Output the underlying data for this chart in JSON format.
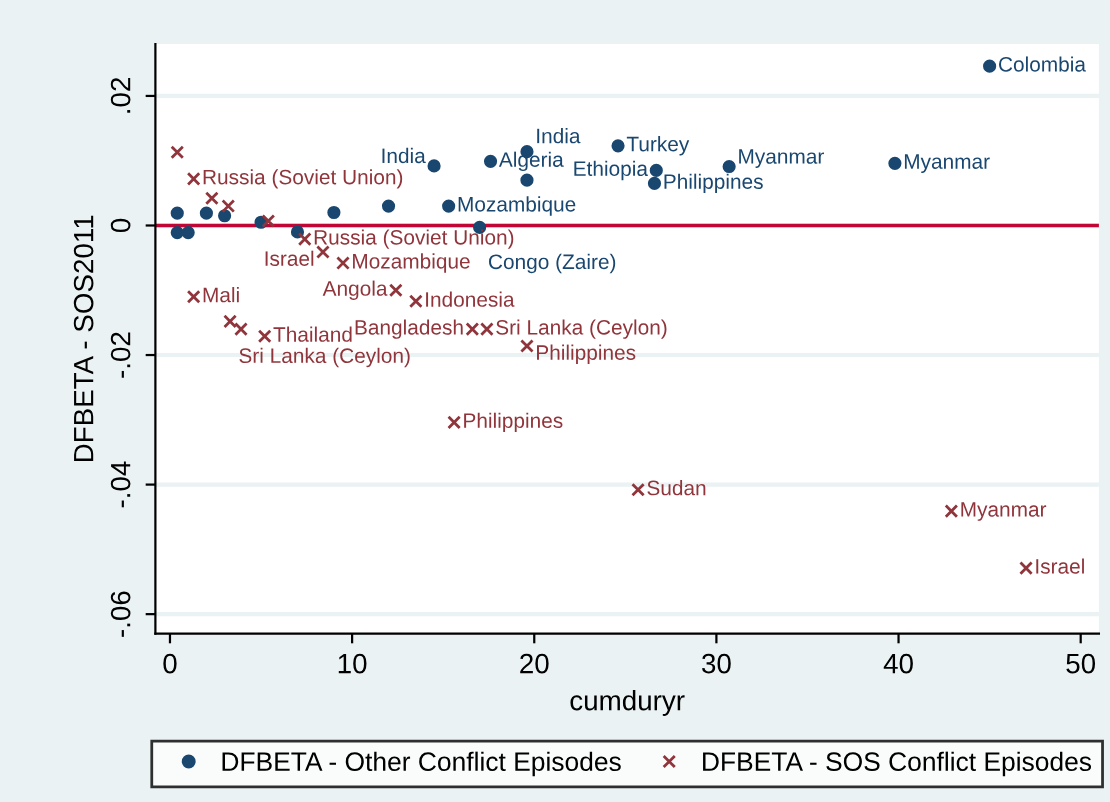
{
  "chart_data": {
    "type": "scatter",
    "xlabel": "cumduryr",
    "ylabel": "DFBETA - SOS2011",
    "xlim": [
      -0.8,
      51
    ],
    "ylim": [
      -0.063,
      0.028
    ],
    "xticks": [
      0,
      10,
      20,
      30,
      40,
      50
    ],
    "yticks": [
      {
        "value": -0.06,
        "label": "-.06"
      },
      {
        "value": -0.04,
        "label": "-.04"
      },
      {
        "value": -0.02,
        "label": "-.02"
      },
      0,
      {
        "value": 0.02,
        "label": ".02"
      }
    ],
    "grid": "y",
    "legend": "bottom",
    "ref_lines": [
      {
        "axis": "y",
        "value": 0,
        "color": "#c10534"
      }
    ],
    "series": [
      {
        "name": "DFBETA - Other Conflict Episodes",
        "color": "#1a476f",
        "marker": "circle",
        "x": [
          45,
          24.6,
          19.6,
          17.6,
          14.5,
          26.7,
          30.7,
          39.8,
          19.6,
          26.6,
          15.3,
          17,
          0.4,
          0.4,
          1,
          2,
          3,
          5,
          7,
          9,
          12
        ],
        "values": [
          0.0246,
          0.0123,
          0.0114,
          0.0099,
          0.0092,
          0.0085,
          0.0091,
          0.0096,
          0.007,
          0.0065,
          0.003,
          -0.0003,
          0.0019,
          -0.0011,
          -0.0011,
          0.0019,
          0.0015,
          0.0005,
          -0.001,
          0.002,
          0.003
        ],
        "value_labels": [
          "Colombia",
          "Turkey",
          "India",
          "Algeria",
          "India",
          "Ethiopia",
          "Myanmar",
          "Myanmar",
          null,
          "Philippines",
          "Mozambique",
          "Congo (Zaire)",
          null,
          null,
          null,
          null,
          null,
          null,
          null,
          null,
          null
        ]
      },
      {
        "name": "DFBETA - SOS Conflict Episodes",
        "color": "#90353b",
        "marker": "cross",
        "x": [
          1.3,
          3.3,
          3.9,
          5.2,
          12.4,
          13.5,
          16.6,
          17.4,
          19.6,
          15.6,
          25.7,
          42.9,
          47,
          8.4,
          9.5,
          0.4,
          1.3,
          2.3,
          3.2,
          5.4,
          7.4
        ],
        "values": [
          -0.011,
          -0.0148,
          -0.016,
          -0.0171,
          -0.01,
          -0.0117,
          -0.016,
          -0.016,
          -0.0186,
          -0.0304,
          -0.0408,
          -0.0441,
          -0.0529,
          -0.0041,
          -0.0058,
          0.0113,
          0.0072,
          0.0042,
          0.003,
          0.0007,
          -0.0021
        ],
        "value_labels": [
          "Mali",
          "Sri Lanka (Ceylon)",
          null,
          "Thailand",
          "Angola",
          "Indonesia",
          "Bangladesh",
          "Sri Lanka (Ceylon)",
          "Philippines",
          "Philippines",
          "Sudan",
          "Myanmar",
          "Israel",
          "Israel",
          "Mozambique",
          null,
          "Russia (Soviet Union)",
          null,
          null,
          null,
          "Russia (Soviet Union)"
        ]
      }
    ]
  }
}
